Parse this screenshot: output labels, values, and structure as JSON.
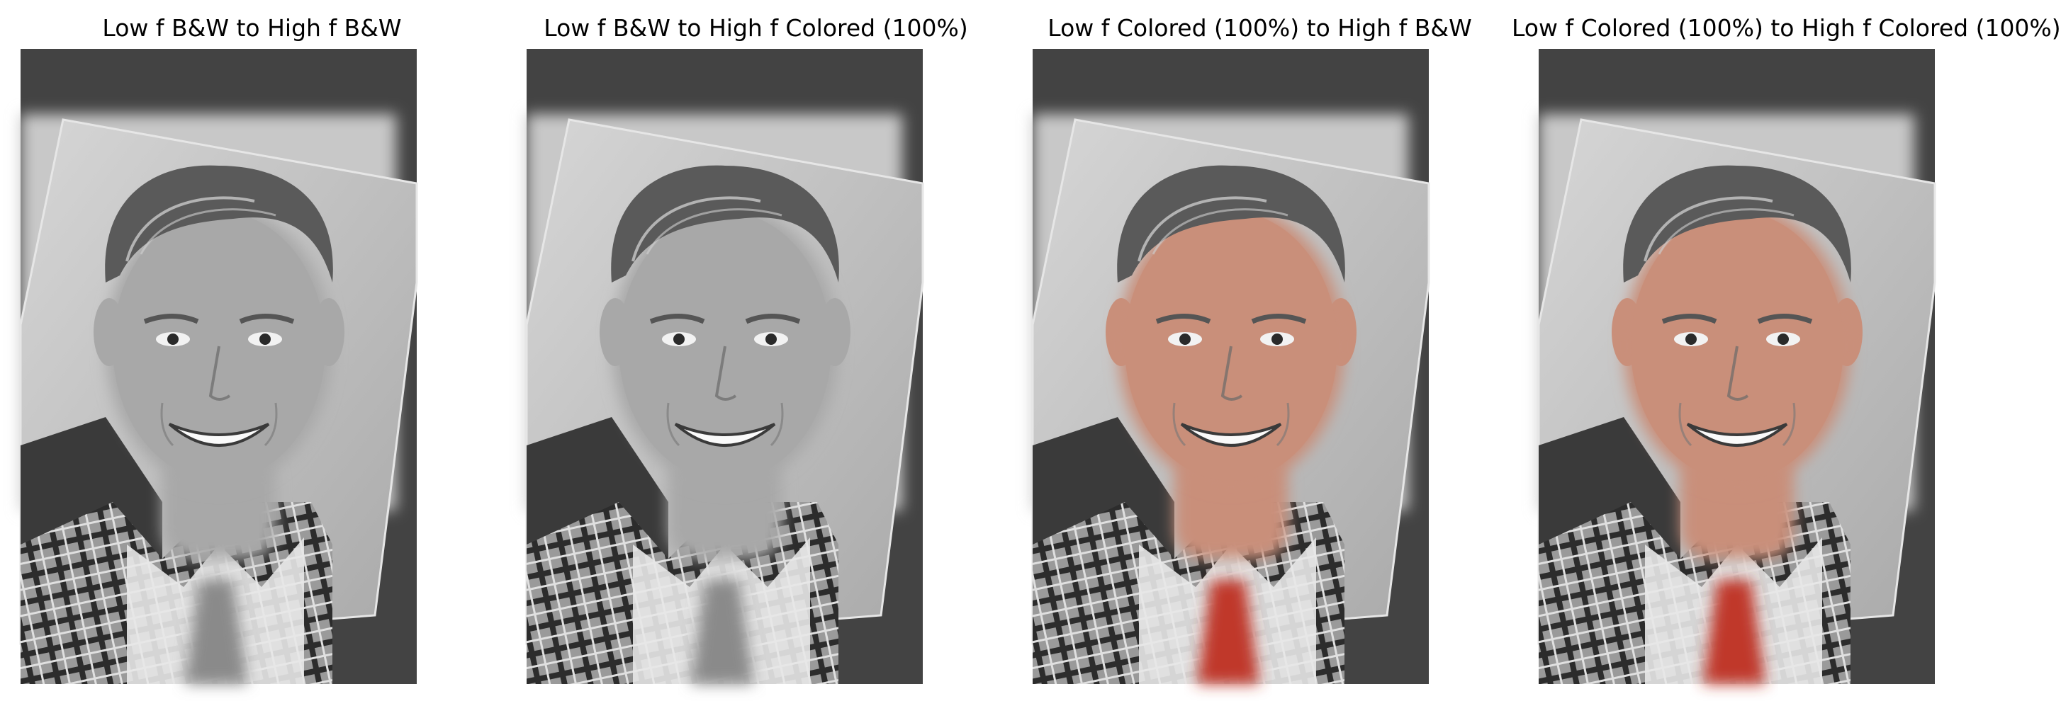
{
  "figure": {
    "panels": [
      {
        "title": "Low f B&W to High f B&W",
        "low_frequency": "B&W",
        "high_frequency": "B&W"
      },
      {
        "title": "Low f B&W to High f Colored (100%)",
        "low_frequency": "B&W",
        "high_frequency": "Colored"
      },
      {
        "title": "Low f Colored (100%) to High f B&W",
        "low_frequency": "Colored",
        "high_frequency": "B&W"
      },
      {
        "title": "Low f Colored (100%) to High f Colored (100%)",
        "low_frequency": "Colored",
        "high_frequency": "Colored"
      }
    ]
  },
  "colors": {
    "background": "#ffffff",
    "frame_dark": "#434343",
    "backdrop_light": "#c8c8c8",
    "skin_color": "#c98f7a",
    "skin_gray": "#a8a8a8",
    "tie_color": "#c0392b",
    "tie_gray": "#8a8a8a"
  }
}
